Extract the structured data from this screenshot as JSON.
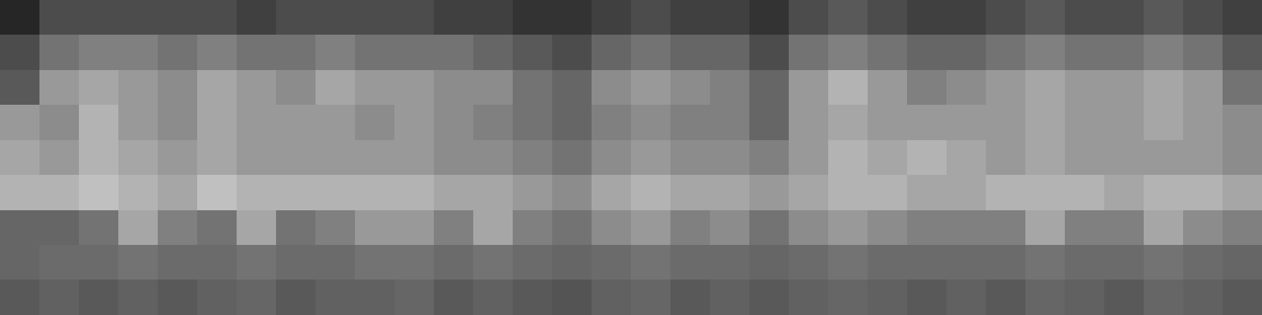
{
  "chart_data": {
    "type": "heatmap",
    "color": "gray",
    "tick_labels": false,
    "color_range": [
      0,
      1
    ],
    "cells": [
      [
        0.15,
        0.3,
        0.3,
        0.3,
        0.3,
        0.3,
        0.25,
        0.3,
        0.3,
        0.3,
        0.3,
        0.25,
        0.25,
        0.2,
        0.2,
        0.25,
        0.3,
        0.25,
        0.25,
        0.2,
        0.3,
        0.35,
        0.3,
        0.25,
        0.25,
        0.3,
        0.35,
        0.3,
        0.3,
        0.35,
        0.3,
        0.25
      ],
      [
        0.3,
        0.45,
        0.5,
        0.5,
        0.45,
        0.5,
        0.45,
        0.45,
        0.5,
        0.45,
        0.45,
        0.45,
        0.4,
        0.35,
        0.3,
        0.4,
        0.45,
        0.4,
        0.4,
        0.3,
        0.45,
        0.5,
        0.45,
        0.4,
        0.4,
        0.45,
        0.5,
        0.45,
        0.45,
        0.5,
        0.45,
        0.35
      ],
      [
        0.35,
        0.6,
        0.65,
        0.6,
        0.55,
        0.65,
        0.6,
        0.55,
        0.65,
        0.6,
        0.6,
        0.55,
        0.55,
        0.45,
        0.4,
        0.55,
        0.6,
        0.55,
        0.5,
        0.4,
        0.6,
        0.7,
        0.6,
        0.5,
        0.55,
        0.6,
        0.65,
        0.6,
        0.6,
        0.65,
        0.6,
        0.45
      ],
      [
        0.6,
        0.55,
        0.7,
        0.6,
        0.55,
        0.65,
        0.6,
        0.6,
        0.6,
        0.55,
        0.6,
        0.55,
        0.5,
        0.45,
        0.4,
        0.5,
        0.55,
        0.5,
        0.5,
        0.4,
        0.6,
        0.65,
        0.6,
        0.6,
        0.6,
        0.6,
        0.65,
        0.6,
        0.6,
        0.65,
        0.6,
        0.55
      ],
      [
        0.65,
        0.6,
        0.7,
        0.65,
        0.6,
        0.65,
        0.6,
        0.6,
        0.6,
        0.6,
        0.6,
        0.55,
        0.55,
        0.5,
        0.45,
        0.55,
        0.6,
        0.55,
        0.55,
        0.5,
        0.6,
        0.7,
        0.65,
        0.7,
        0.65,
        0.6,
        0.65,
        0.6,
        0.6,
        0.6,
        0.6,
        0.55
      ],
      [
        0.7,
        0.7,
        0.75,
        0.7,
        0.65,
        0.75,
        0.7,
        0.7,
        0.7,
        0.7,
        0.7,
        0.65,
        0.65,
        0.6,
        0.55,
        0.65,
        0.7,
        0.65,
        0.65,
        0.6,
        0.65,
        0.7,
        0.7,
        0.65,
        0.65,
        0.7,
        0.7,
        0.7,
        0.65,
        0.7,
        0.7,
        0.65
      ],
      [
        0.4,
        0.4,
        0.45,
        0.65,
        0.5,
        0.45,
        0.65,
        0.45,
        0.5,
        0.6,
        0.6,
        0.5,
        0.65,
        0.5,
        0.45,
        0.55,
        0.6,
        0.5,
        0.55,
        0.45,
        0.55,
        0.6,
        0.55,
        0.5,
        0.5,
        0.5,
        0.65,
        0.5,
        0.5,
        0.65,
        0.55,
        0.5
      ],
      [
        0.4,
        0.42,
        0.42,
        0.45,
        0.42,
        0.42,
        0.45,
        0.42,
        0.42,
        0.45,
        0.45,
        0.42,
        0.45,
        0.42,
        0.4,
        0.42,
        0.45,
        0.42,
        0.42,
        0.4,
        0.42,
        0.45,
        0.42,
        0.42,
        0.42,
        0.42,
        0.45,
        0.42,
        0.42,
        0.45,
        0.42,
        0.4
      ],
      [
        0.35,
        0.38,
        0.35,
        0.38,
        0.35,
        0.38,
        0.4,
        0.35,
        0.38,
        0.38,
        0.4,
        0.35,
        0.38,
        0.35,
        0.33,
        0.38,
        0.4,
        0.35,
        0.38,
        0.35,
        0.38,
        0.4,
        0.38,
        0.35,
        0.38,
        0.35,
        0.4,
        0.38,
        0.35,
        0.4,
        0.38,
        0.35
      ]
    ]
  }
}
